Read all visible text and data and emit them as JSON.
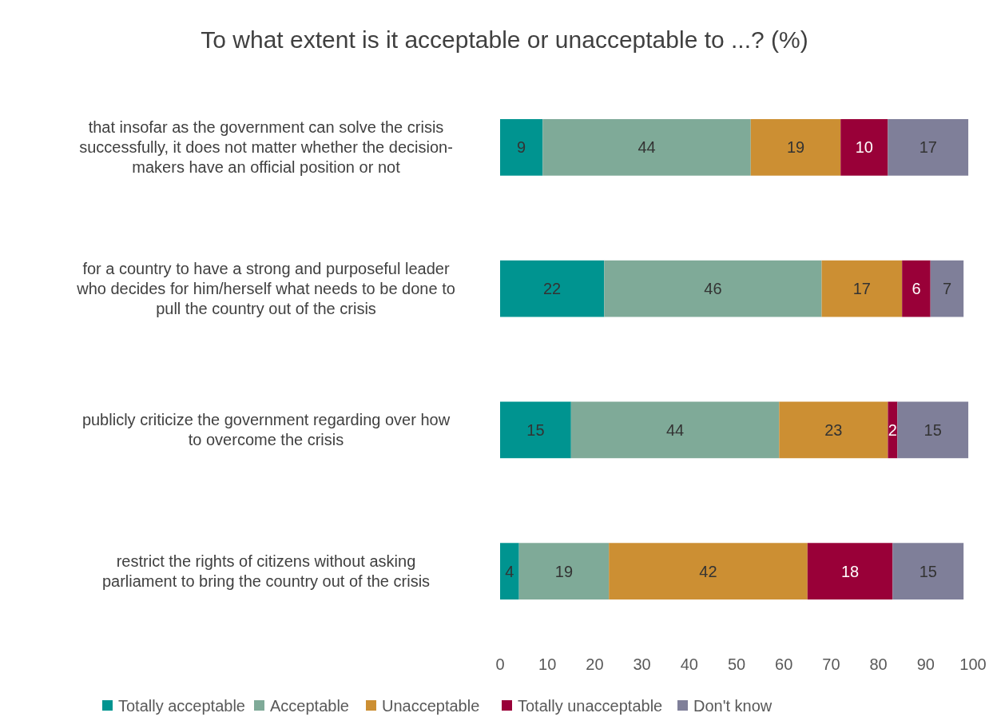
{
  "chart_data": {
    "type": "bar",
    "orientation": "horizontal",
    "stacked": true,
    "title": "To what extent is it acceptable or unacceptable to ...? (%)",
    "categories": [
      "that insofar as the government can solve the crisis successfully, it does not matter whether the decision-makers have an official position or not",
      "for a country to have a strong and purposeful leader who decides for him/herself what needs to be done to pull the country out of the crisis",
      "publicly criticize the government regarding over how to overcome the crisis",
      "restrict the rights of citizens without asking parliament to bring the country out of the crisis"
    ],
    "series": [
      {
        "name": "Totally acceptable",
        "color": "#009490",
        "values": [
          9,
          22,
          15,
          4
        ]
      },
      {
        "name": "Acceptable",
        "color": "#7faa98",
        "values": [
          44,
          46,
          44,
          19
        ]
      },
      {
        "name": "Unacceptable",
        "color": "#cc8f33",
        "values": [
          19,
          17,
          23,
          42
        ]
      },
      {
        "name": "Totally unacceptable",
        "color": "#990038",
        "values": [
          10,
          6,
          2,
          18
        ]
      },
      {
        "name": "Don't know",
        "color": "#7f7f99",
        "values": [
          17,
          7,
          15,
          15
        ]
      }
    ],
    "xlim": [
      0,
      100
    ],
    "xticks": [
      0,
      10,
      20,
      30,
      40,
      50,
      60,
      70,
      80,
      90,
      100
    ],
    "data_labels": true,
    "legend": "bottom"
  }
}
